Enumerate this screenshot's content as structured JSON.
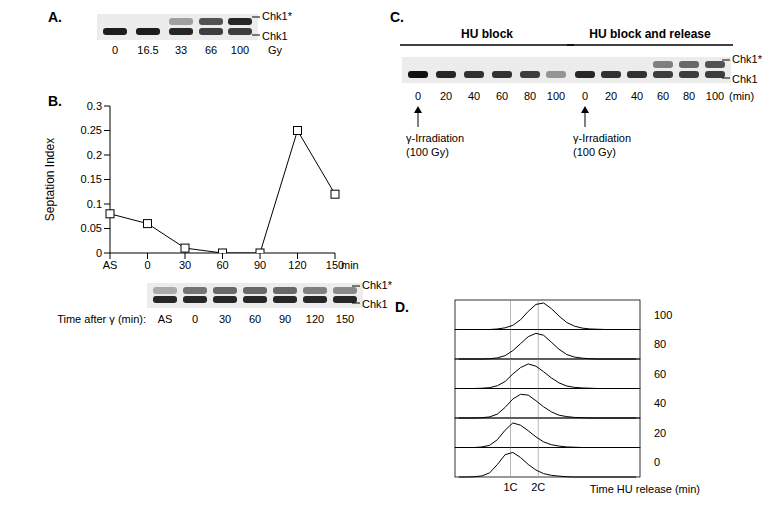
{
  "chart_data": {
    "type": "line",
    "y_label": "Septation Index",
    "x_label": "min",
    "categories": [
      "AS",
      "0",
      "30",
      "60",
      "90",
      "120",
      "150"
    ],
    "values": [
      0.08,
      0.06,
      0.01,
      0,
      0,
      0.25,
      0.12
    ],
    "ylim": [
      0,
      0.3
    ],
    "yticks": [
      0,
      0.05,
      0.1,
      0.15,
      0.2,
      0.25,
      0.3
    ],
    "color": "#000000",
    "marker": "square"
  },
  "panel_A": {
    "label": "A.",
    "band_labels": [
      "Chk1*",
      "Chk1"
    ],
    "lanes": [
      0,
      16.5,
      33,
      66,
      100
    ],
    "unit": "Gy",
    "upper": [
      0,
      0,
      0.35,
      0.7,
      0.9
    ],
    "lower": [
      0.95,
      0.95,
      0.9,
      0.8,
      0.8
    ]
  },
  "panel_B": {
    "label": "B.",
    "band_labels": [
      "Chk1*",
      "Chk1"
    ],
    "lane_title": "Time after γ (min):",
    "lanes": [
      "AS",
      "0",
      "30",
      "60",
      "90",
      "120",
      "150"
    ],
    "upper": [
      0.3,
      0.55,
      0.6,
      0.6,
      0.6,
      0.5,
      0.45
    ],
    "lower": [
      0.9,
      0.9,
      0.9,
      0.9,
      0.9,
      0.9,
      0.9
    ]
  },
  "panel_C": {
    "label": "C.",
    "band_labels": [
      "Chk1*",
      "Chk1"
    ],
    "unit": "(min)",
    "annotation": [
      "γ-Irradiation",
      "(100 Gy)"
    ],
    "blots": [
      {
        "title": "HU block",
        "lanes": [
          0,
          20,
          40,
          60,
          80,
          100
        ],
        "upper": [
          0,
          0,
          0,
          0,
          0,
          0
        ],
        "lower": [
          1,
          0.9,
          0.85,
          0.85,
          0.8,
          0.4
        ]
      },
      {
        "title": "HU block and release",
        "lanes": [
          0,
          20,
          40,
          60,
          80,
          100
        ],
        "upper": [
          0,
          0,
          0,
          0.5,
          0.6,
          0.7
        ],
        "lower": [
          0.9,
          0.85,
          0.85,
          0.8,
          0.8,
          0.8
        ]
      }
    ]
  },
  "panel_D": {
    "label": "D.",
    "x_label": "Time HU release (min)",
    "xlim": [
      0,
      240
    ],
    "markers": [
      {
        "label": "1C",
        "value": 72
      },
      {
        "label": "2C",
        "value": 108
      }
    ],
    "x": [
      5,
      15,
      25,
      35,
      45,
      55,
      65,
      75,
      85,
      95,
      105,
      115,
      125,
      135,
      145,
      155,
      165,
      175,
      185,
      195,
      205,
      215,
      225,
      235
    ],
    "rows": [
      {
        "time": 100,
        "counts": [
          0,
          0,
          0,
          0,
          0,
          2,
          6,
          15,
          35,
          65,
          90,
          95,
          75,
          48,
          25,
          12,
          5,
          2,
          1,
          0,
          0,
          0,
          0,
          0
        ]
      },
      {
        "time": 80,
        "counts": [
          0,
          0,
          0,
          0,
          1,
          4,
          12,
          30,
          55,
          80,
          92,
          85,
          60,
          35,
          16,
          7,
          3,
          1,
          0,
          0,
          0,
          0,
          0,
          0
        ]
      },
      {
        "time": 60,
        "counts": [
          0,
          0,
          0,
          1,
          3,
          10,
          25,
          52,
          75,
          88,
          80,
          60,
          38,
          20,
          9,
          4,
          2,
          1,
          0,
          0,
          0,
          0,
          0,
          0
        ]
      },
      {
        "time": 40,
        "counts": [
          0,
          0,
          0,
          1,
          4,
          14,
          38,
          68,
          85,
          82,
          62,
          40,
          22,
          10,
          5,
          2,
          1,
          0,
          0,
          0,
          0,
          0,
          0,
          0
        ]
      },
      {
        "time": 20,
        "counts": [
          0,
          0,
          0,
          2,
          8,
          28,
          62,
          88,
          80,
          60,
          38,
          20,
          10,
          5,
          2,
          1,
          0,
          0,
          0,
          0,
          0,
          0,
          0,
          0
        ]
      },
      {
        "time": 0,
        "counts": [
          0,
          0,
          1,
          4,
          15,
          45,
          80,
          88,
          70,
          45,
          25,
          12,
          6,
          3,
          1,
          0,
          0,
          0,
          0,
          0,
          0,
          0,
          0,
          0
        ]
      }
    ]
  }
}
